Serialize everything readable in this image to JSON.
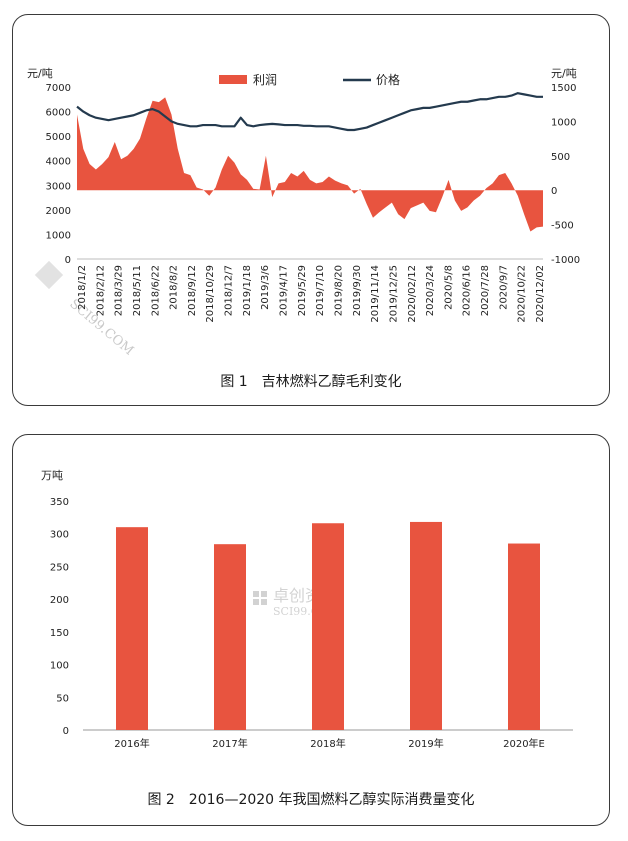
{
  "colors": {
    "profit": "#e8543f",
    "price": "#243a4e",
    "bar": "#e8543f"
  },
  "figure1": {
    "caption": "图 1　吉林燃料乙醇毛利变化",
    "left_unit": "元/吨",
    "right_unit": "元/吨",
    "legend": {
      "profit": "利润",
      "price": "价格"
    },
    "watermark": "SCI99.COM"
  },
  "figure2": {
    "caption": "图 2　2016—2020 年我国燃料乙醇实际消费量变化",
    "unit": "万吨",
    "watermark": {
      "cn": "卓创资讯",
      "en": "SCI99.COM"
    }
  },
  "chart_data": [
    {
      "type": "line",
      "left_axis": {
        "ylim": [
          0,
          7000
        ],
        "ticks": [
          "0",
          "1000",
          "2000",
          "3000",
          "4000",
          "5000",
          "6000",
          "7000"
        ],
        "unit": "元/吨"
      },
      "right_axis": {
        "ylim": [
          -1000,
          1500
        ],
        "ticks": [
          "-1000",
          "-500",
          "0",
          "500",
          "1000",
          "1500"
        ],
        "unit": "元/吨"
      },
      "x_tick_labels": [
        "2018/1/2",
        "2018/2/12",
        "2018/3/29",
        "2018/5/11",
        "2018/6/22",
        "2018/8/2",
        "2018/9/12",
        "2018/10/29",
        "2018/12/7",
        "2019/1/18",
        "2019/3/6",
        "2019/4/17",
        "2019/5/29",
        "2019/7/10",
        "2019/8/20",
        "2019/9/30",
        "2019/11/14",
        "2019/12/25",
        "2020/02/12",
        "2020/3/24",
        "2020/5/8",
        "2020/6/16",
        "2020/7/28",
        "2020/9/7",
        "2020/10/22",
        "2020/12/02"
      ],
      "series": [
        {
          "name": "利润",
          "style": "area",
          "axis": "right",
          "values": [
            1100,
            600,
            380,
            300,
            380,
            480,
            700,
            450,
            500,
            600,
            750,
            1040,
            1300,
            1280,
            1350,
            1100,
            600,
            250,
            220,
            40,
            10,
            -80,
            40,
            300,
            500,
            400,
            230,
            150,
            20,
            10,
            500,
            -100,
            100,
            120,
            250,
            200,
            280,
            150,
            100,
            120,
            200,
            140,
            100,
            70,
            -50,
            20,
            -200,
            -400,
            -320,
            -250,
            -180,
            -350,
            -420,
            -260,
            -220,
            -180,
            -300,
            -320,
            -100,
            150,
            -150,
            -300,
            -250,
            -150,
            -80,
            30,
            100,
            220,
            250,
            100,
            -80,
            -350,
            -600,
            -540,
            -530
          ]
        },
        {
          "name": "价格",
          "style": "line",
          "axis": "left",
          "values": [
            6200,
            6000,
            5850,
            5750,
            5700,
            5650,
            5700,
            5750,
            5800,
            5850,
            5950,
            6050,
            6100,
            6000,
            5800,
            5600,
            5500,
            5450,
            5400,
            5400,
            5450,
            5450,
            5450,
            5400,
            5400,
            5400,
            5750,
            5450,
            5400,
            5450,
            5480,
            5500,
            5480,
            5450,
            5450,
            5450,
            5420,
            5420,
            5400,
            5400,
            5400,
            5350,
            5300,
            5250,
            5250,
            5300,
            5350,
            5450,
            5550,
            5650,
            5750,
            5850,
            5950,
            6050,
            6100,
            6150,
            6150,
            6200,
            6250,
            6300,
            6350,
            6400,
            6400,
            6450,
            6500,
            6500,
            6550,
            6600,
            6600,
            6650,
            6750,
            6700,
            6650,
            6600,
            6600
          ]
        }
      ]
    },
    {
      "type": "bar",
      "categories": [
        "2016年",
        "2017年",
        "2018年",
        "2019年",
        "2020年E"
      ],
      "values": [
        310,
        284,
        316,
        318,
        285
      ],
      "ylabel": "万吨",
      "ylim": [
        0,
        350
      ],
      "yticks": [
        "0",
        "50",
        "100",
        "150",
        "200",
        "250",
        "300",
        "350"
      ]
    }
  ]
}
